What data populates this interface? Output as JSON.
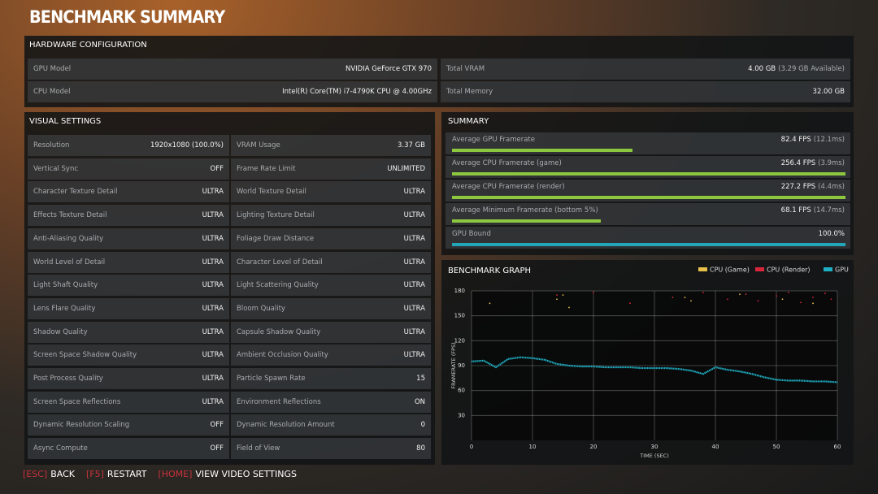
{
  "title": "BENCHMARK SUMMARY",
  "hardware": {
    "title": "HARDWARE CONFIGURATION",
    "left": [
      {
        "label": "GPU Model",
        "value": "NVIDIA GeForce GTX 970"
      },
      {
        "label": "CPU Model",
        "value": "Intel(R) Core(TM) i7-4790K CPU @ 4.00GHz"
      }
    ],
    "right": [
      {
        "label": "Total VRAM",
        "value": "4.00 GB",
        "detail": "(3.29 GB Available)"
      },
      {
        "label": "Total Memory",
        "value": "32.00 GB"
      }
    ]
  },
  "visual_settings": {
    "title": "VISUAL SETTINGS",
    "rows": [
      [
        {
          "label": "Resolution",
          "value": "1920x1080 (100.0%)"
        },
        {
          "label": "VRAM Usage",
          "value": "3.37 GB"
        }
      ],
      [
        {
          "label": "Vertical Sync",
          "value": "OFF"
        },
        {
          "label": "Frame Rate Limit",
          "value": "UNLIMITED"
        }
      ],
      [
        {
          "label": "Character Texture Detail",
          "value": "ULTRA"
        },
        {
          "label": "World Texture Detail",
          "value": "ULTRA"
        }
      ],
      [
        {
          "label": "Effects Texture Detail",
          "value": "ULTRA"
        },
        {
          "label": "Lighting Texture Detail",
          "value": "ULTRA"
        }
      ],
      [
        {
          "label": "Anti-Aliasing Quality",
          "value": "ULTRA"
        },
        {
          "label": "Foliage Draw Distance",
          "value": "ULTRA"
        }
      ],
      [
        {
          "label": "World Level of Detail",
          "value": "ULTRA"
        },
        {
          "label": "Character Level of Detail",
          "value": "ULTRA"
        }
      ],
      [
        {
          "label": "Light Shaft Quality",
          "value": "ULTRA"
        },
        {
          "label": "Light Scattering Quality",
          "value": "ULTRA"
        }
      ],
      [
        {
          "label": "Lens Flare Quality",
          "value": "ULTRA"
        },
        {
          "label": "Bloom Quality",
          "value": "ULTRA"
        }
      ],
      [
        {
          "label": "Shadow Quality",
          "value": "ULTRA"
        },
        {
          "label": "Capsule Shadow Quality",
          "value": "ULTRA"
        }
      ],
      [
        {
          "label": "Screen Space Shadow Quality",
          "value": "ULTRA"
        },
        {
          "label": "Ambient Occlusion Quality",
          "value": "ULTRA"
        }
      ],
      [
        {
          "label": "Post Process Quality",
          "value": "ULTRA"
        },
        {
          "label": "Particle Spawn Rate",
          "value": "15"
        }
      ],
      [
        {
          "label": "Screen Space Reflections",
          "value": "ULTRA"
        },
        {
          "label": "Environment Reflections",
          "value": "ON"
        }
      ],
      [
        {
          "label": "Dynamic Resolution Scaling",
          "value": "OFF"
        },
        {
          "label": "Dynamic Resolution Amount",
          "value": "0"
        }
      ],
      [
        {
          "label": "Async Compute",
          "value": "OFF"
        },
        {
          "label": "Field of View",
          "value": "80"
        }
      ]
    ]
  },
  "summary": {
    "title": "SUMMARY",
    "rows": [
      {
        "label": "Average GPU Framerate",
        "value": 82.4,
        "value_label": "82.4 FPS",
        "detail": "(12.1ms)",
        "range": [
          0,
          180
        ],
        "color": "#8dc63f"
      },
      {
        "label": "Average CPU Framerate (game)",
        "value": 256.4,
        "value_label": "256.4 FPS",
        "detail": "(3.9ms)",
        "range": [
          0,
          180
        ],
        "color": "#8dc63f"
      },
      {
        "label": "Average CPU Framerate (render)",
        "value": 227.2,
        "value_label": "227.2 FPS",
        "detail": "(4.4ms)",
        "range": [
          0,
          180
        ],
        "color": "#8dc63f"
      },
      {
        "label": "Average Minimum Framerate (bottom 5%)",
        "value": 68.1,
        "value_label": "68.1 FPS",
        "detail": "(14.7ms)",
        "range": [
          0,
          180
        ],
        "color": "#8dc63f"
      },
      {
        "label": "GPU Bound",
        "value": 100.0,
        "value_label": "100.0%",
        "range": [
          0,
          100
        ],
        "color": "#22a6b8"
      }
    ]
  },
  "chart_data": {
    "type": "scatter",
    "title": "BENCHMARK GRAPH",
    "xlabel": "TIME (SEC)",
    "ylabel": "FRAMERATE (FPS)",
    "xlim": [
      0,
      60
    ],
    "xticks": [
      0,
      10,
      20,
      30,
      40,
      50,
      60
    ],
    "ylim": [
      0,
      180
    ],
    "yticks": [
      30,
      60,
      90,
      120,
      150,
      180
    ],
    "grid": true,
    "series": [
      {
        "name": "CPU (Game)",
        "color": "#e8c04a",
        "line": false,
        "x": [
          3,
          14,
          15,
          16,
          35,
          36,
          44,
          51,
          56
        ],
        "values": [
          165,
          170,
          175,
          160,
          172,
          168,
          176,
          170,
          165
        ]
      },
      {
        "name": "CPU (Render)",
        "color": "#d8263a",
        "line": false,
        "x": [
          14,
          20,
          26,
          33,
          38,
          42,
          45,
          47,
          50,
          52,
          54,
          56,
          58,
          59
        ],
        "values": [
          175,
          178,
          165,
          172,
          178,
          170,
          176,
          168,
          174,
          178,
          166,
          172,
          177,
          170
        ]
      },
      {
        "name": "GPU",
        "color": "#1fb0c4",
        "line": true,
        "x": [
          0,
          2,
          4,
          6,
          8,
          10,
          12,
          14,
          16,
          18,
          20,
          22,
          24,
          26,
          28,
          30,
          32,
          34,
          36,
          38,
          40,
          42,
          44,
          46,
          48,
          50,
          52,
          54,
          56,
          58,
          60
        ],
        "values": [
          95,
          96,
          88,
          98,
          100,
          99,
          97,
          92,
          90,
          89,
          89,
          88,
          88,
          88,
          87,
          87,
          87,
          86,
          84,
          80,
          88,
          85,
          83,
          80,
          76,
          73,
          72,
          72,
          71,
          71,
          70
        ]
      }
    ]
  },
  "footer": [
    {
      "key": "[ESC]",
      "label": "BACK"
    },
    {
      "key": "[F5]",
      "label": "RESTART"
    },
    {
      "key": "[HOME]",
      "label": "VIEW VIDEO SETTINGS"
    }
  ]
}
